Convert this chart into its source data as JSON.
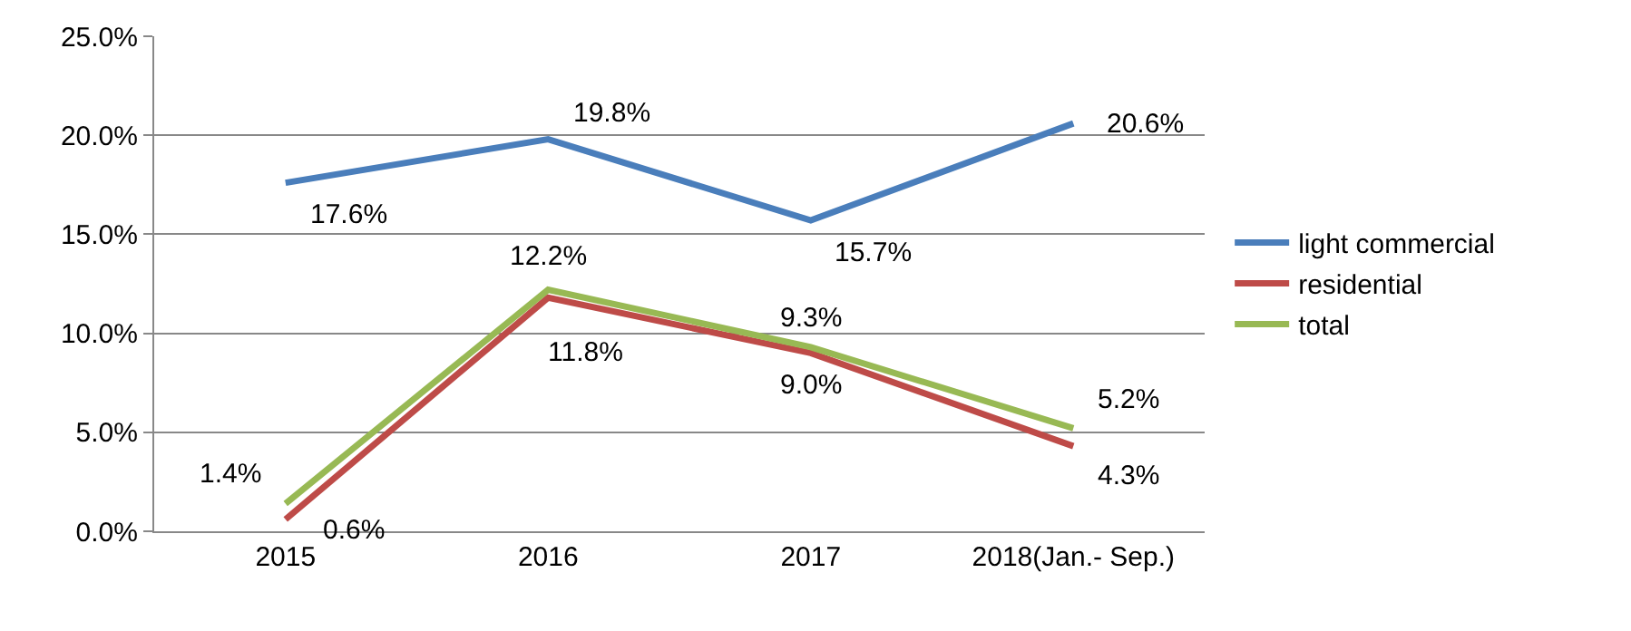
{
  "chart_data": {
    "type": "line",
    "categories": [
      "2015",
      "2016",
      "2017",
      "2018(Jan.- Sep.)"
    ],
    "series": [
      {
        "name": "light commercial",
        "color": "#4a7ebb",
        "values": [
          17.6,
          19.8,
          15.7,
          20.6
        ],
        "value_labels": [
          "17.6%",
          "19.8%",
          "15.7%",
          "20.6%"
        ]
      },
      {
        "name": "residential",
        "color": "#be4b48",
        "values": [
          0.6,
          11.8,
          9.0,
          4.3
        ],
        "value_labels": [
          "0.6%",
          "11.8%",
          "9.0%",
          "4.3%"
        ]
      },
      {
        "name": "total",
        "color": "#98b954",
        "values": [
          1.4,
          12.2,
          9.3,
          5.2
        ],
        "value_labels": [
          "1.4%",
          "12.2%",
          "9.3%",
          "5.2%"
        ]
      }
    ],
    "ylim": [
      0,
      25
    ],
    "yticks": [
      {
        "value": 0,
        "label": "0.0%"
      },
      {
        "value": 5,
        "label": "5.0%"
      },
      {
        "value": 10,
        "label": "10.0%"
      },
      {
        "value": 15,
        "label": "15.0%"
      },
      {
        "value": 20,
        "label": "20.0%"
      },
      {
        "value": 25,
        "label": "25.0%"
      }
    ],
    "grid": "y",
    "legend": "right",
    "marker": "none",
    "line_style": "solid"
  }
}
